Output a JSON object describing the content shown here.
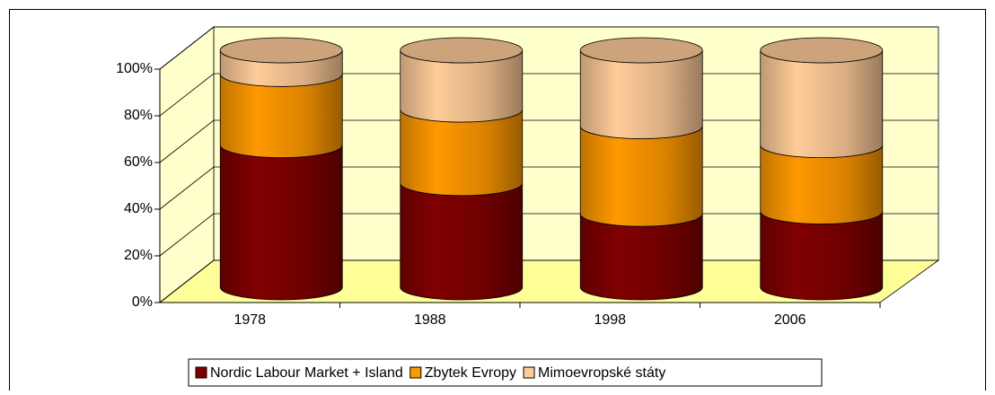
{
  "chart_data": {
    "type": "cylinder3d",
    "categories": [
      "1978",
      "1988",
      "1998",
      "2006"
    ],
    "series": [
      {
        "name": "Nordic Labour Market + Island",
        "color": "#800000",
        "values": [
          60,
          44,
          31,
          32
        ]
      },
      {
        "name": "Zbytek Evropy",
        "color": "#FF9900",
        "values": [
          30,
          31,
          37,
          28
        ]
      },
      {
        "name": "Mimoevropské státy",
        "color": "#FFCC99",
        "values": [
          10,
          25,
          32,
          40
        ]
      }
    ],
    "ylim": [
      0,
      100
    ],
    "yticks": [
      {
        "value": 0,
        "label": "0%"
      },
      {
        "value": 20,
        "label": "20%"
      },
      {
        "value": 40,
        "label": "40%"
      },
      {
        "value": 60,
        "label": "60%"
      },
      {
        "value": 80,
        "label": "80%"
      },
      {
        "value": 100,
        "label": "100%"
      }
    ],
    "grid": true,
    "legend": "bottom"
  }
}
